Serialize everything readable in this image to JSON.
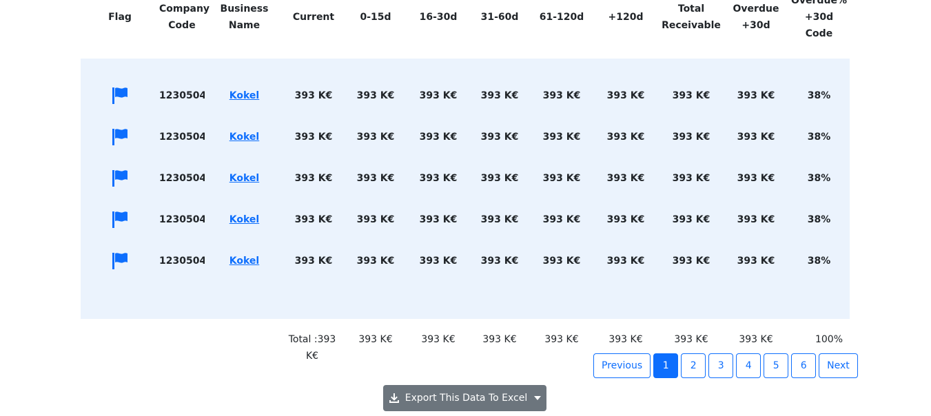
{
  "columns": [
    {
      "line1": "Flag",
      "line2": "",
      "line3": ""
    },
    {
      "line1": "Company",
      "line2": "Code",
      "line3": ""
    },
    {
      "line1": "Business",
      "line2": "Name",
      "line3": ""
    },
    {
      "line1": "Current",
      "line2": "",
      "line3": ""
    },
    {
      "line1": "0-15d",
      "line2": "",
      "line3": ""
    },
    {
      "line1": "16-30d",
      "line2": "",
      "line3": ""
    },
    {
      "line1": "31-60d",
      "line2": "",
      "line3": ""
    },
    {
      "line1": "61-120d",
      "line2": "",
      "line3": ""
    },
    {
      "line1": "+120d",
      "line2": "",
      "line3": ""
    },
    {
      "line1": "Total",
      "line2": "Receivable",
      "line3": ""
    },
    {
      "line1": "Overdue",
      "line2": "+30d",
      "line3": ""
    },
    {
      "line1": "Overdue%",
      "line2": "+30d",
      "line3": "Code"
    }
  ],
  "rows": [
    {
      "code": "1230504",
      "name": "Kokel",
      "current": "393 K€",
      "d0_15": "393 K€",
      "d16_30": "393 K€",
      "d31_60": "393 K€",
      "d61_120": "393 K€",
      "d120": "393 K€",
      "total": "393 K€",
      "overdue": "393 K€",
      "overdue_pct": "38%"
    },
    {
      "code": "1230504",
      "name": "Kokel",
      "current": "393 K€",
      "d0_15": "393 K€",
      "d16_30": "393 K€",
      "d31_60": "393 K€",
      "d61_120": "393 K€",
      "d120": "393 K€",
      "total": "393 K€",
      "overdue": "393 K€",
      "overdue_pct": "38%"
    },
    {
      "code": "1230504",
      "name": "Kokel",
      "current": "393 K€",
      "d0_15": "393 K€",
      "d16_30": "393 K€",
      "d31_60": "393 K€",
      "d61_120": "393 K€",
      "d120": "393 K€",
      "total": "393 K€",
      "overdue": "393 K€",
      "overdue_pct": "38%"
    },
    {
      "code": "1230504",
      "name": "Kokel",
      "current": "393 K€",
      "d0_15": "393 K€",
      "d16_30": "393 K€",
      "d31_60": "393 K€",
      "d61_120": "393 K€",
      "d120": "393 K€",
      "total": "393 K€",
      "overdue": "393 K€",
      "overdue_pct": "38%"
    },
    {
      "code": "1230504",
      "name": "Kokel",
      "current": "393 K€",
      "d0_15": "393 K€",
      "d16_30": "393 K€",
      "d31_60": "393 K€",
      "d61_120": "393 K€",
      "d120": "393 K€",
      "total": "393 K€",
      "overdue": "393 K€",
      "overdue_pct": "38%"
    }
  ],
  "totals": {
    "label": "Total :393 K€",
    "d0_15": "393 K€",
    "d16_30": "393 K€",
    "d31_60": "393 K€",
    "d61_120": "393 K€",
    "d120": "393 K€",
    "total": "393 K€",
    "overdue": "393 K€",
    "overdue_pct": "100%"
  },
  "pagination": {
    "previous": "Previous",
    "pages": [
      "1",
      "2",
      "3",
      "4",
      "5",
      "6"
    ],
    "active_page": "1",
    "next": "Next"
  },
  "export": {
    "label": "Export This Data To Excel",
    "icon": "download-icon"
  },
  "colors": {
    "accent": "#0d6efd",
    "row_bg": "#ebf3fd",
    "export_bg": "#6c757d"
  },
  "icons": {
    "flag": "flag-icon"
  }
}
